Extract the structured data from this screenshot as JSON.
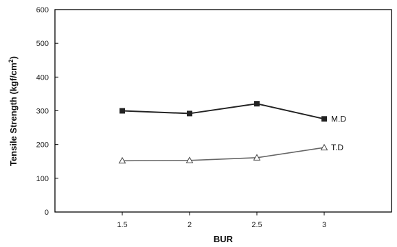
{
  "chart_data": {
    "type": "line",
    "title": "",
    "xlabel": "BUR",
    "ylabel_main": "Tensile Strength (kgf/cm",
    "ylabel_sup": "2",
    "ylabel_close": ")",
    "x": [
      1.5,
      2,
      2.5,
      3
    ],
    "x_tick_labels": [
      "1.5",
      "2",
      "2.5",
      "3"
    ],
    "xlim": [
      1,
      3.5
    ],
    "ylim": [
      0,
      600
    ],
    "y_ticks": [
      0,
      100,
      200,
      300,
      400,
      500,
      600
    ],
    "grid": false,
    "series": [
      {
        "name": "M.D",
        "values": [
          300,
          292,
          321,
          276
        ],
        "color": "#222222",
        "marker": "square"
      },
      {
        "name": "T.D",
        "values": [
          152,
          153,
          161,
          191
        ],
        "color": "#666666",
        "marker": "triangle-open"
      }
    ]
  }
}
